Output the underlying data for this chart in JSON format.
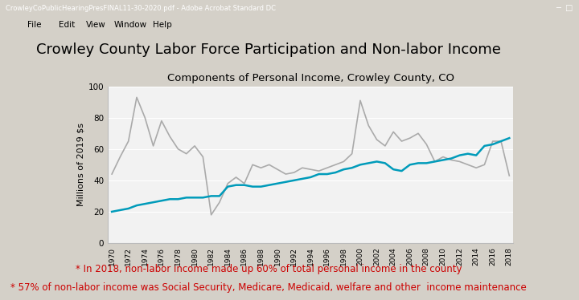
{
  "title": "Crowley County Labor Force Participation and Non-labor Income",
  "subtitle": "Components of Personal Income, Crowley County, CO",
  "ylabel": "Millions of 2019 $s",
  "ylim": [
    0,
    100
  ],
  "yticks": [
    0,
    20,
    40,
    60,
    80,
    100
  ],
  "years": [
    1970,
    1971,
    1972,
    1973,
    1974,
    1975,
    1976,
    1977,
    1978,
    1979,
    1980,
    1981,
    1982,
    1983,
    1984,
    1985,
    1986,
    1987,
    1988,
    1989,
    1990,
    1991,
    1992,
    1993,
    1994,
    1995,
    1996,
    1997,
    1998,
    1999,
    2000,
    2001,
    2002,
    2003,
    2004,
    2005,
    2006,
    2007,
    2008,
    2009,
    2010,
    2011,
    2012,
    2013,
    2014,
    2015,
    2016,
    2017,
    2018
  ],
  "labor_earnings": [
    44,
    55,
    65,
    93,
    80,
    62,
    78,
    68,
    60,
    57,
    62,
    55,
    18,
    26,
    38,
    42,
    38,
    50,
    48,
    50,
    47,
    44,
    45,
    48,
    47,
    46,
    48,
    50,
    52,
    57,
    91,
    75,
    66,
    62,
    71,
    65,
    67,
    70,
    63,
    52,
    55,
    53,
    52,
    50,
    48,
    50,
    65,
    65,
    43
  ],
  "non_labor_income": [
    20,
    21,
    22,
    24,
    25,
    26,
    27,
    28,
    28,
    29,
    29,
    29,
    30,
    30,
    36,
    37,
    37,
    36,
    36,
    37,
    38,
    39,
    40,
    41,
    42,
    44,
    44,
    45,
    47,
    48,
    50,
    51,
    52,
    51,
    47,
    46,
    50,
    51,
    51,
    52,
    53,
    54,
    56,
    57,
    56,
    62,
    63,
    65,
    67
  ],
  "labor_color": "#aaaaaa",
  "non_labor_color": "#009bba",
  "window_bg": "#d4d0c8",
  "page_bg": "#ffffff",
  "titlebar_bg": "#000080",
  "titlebar_text": "CrowleyCoPublicHearingPresFINAL11-30-2020.pdf - Adobe Acrobat Standard DC",
  "menubar_items": [
    "File",
    "Edit",
    "View",
    "Window",
    "Help"
  ],
  "annotation1": "* In 2018, non-labor income made up 60% of total personal income in the county",
  "annotation2": "* 57% of non-labor income was Social Security, Medicare, Medicaid, welfare and other  income maintenance",
  "annotation_color": "#cc0000",
  "title_fontsize": 13,
  "subtitle_fontsize": 9.5,
  "annotation_fontsize": 8.5,
  "chart_title_fontsize": 13
}
